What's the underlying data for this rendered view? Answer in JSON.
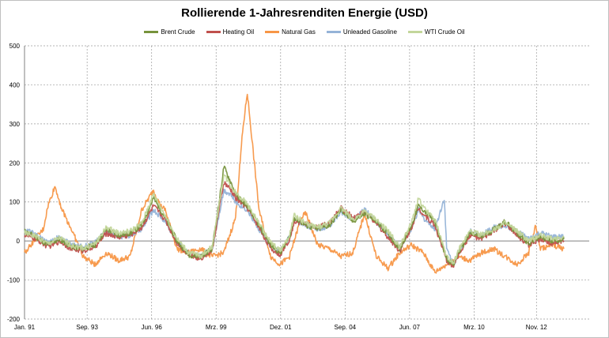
{
  "chart_data": {
    "type": "line",
    "title": "Rollierende 1-Jahresrenditen Energie (USD)",
    "xlabel": "",
    "ylabel": "",
    "ylim": [
      -200,
      500
    ],
    "yticks": [
      -200,
      -100,
      0,
      100,
      200,
      300,
      400,
      500
    ],
    "xlim": [
      1991.0,
      2015.08
    ],
    "xticks": [
      {
        "label": "Jan. 91",
        "x": 1991.0
      },
      {
        "label": "Sep. 93",
        "x": 1993.67
      },
      {
        "label": "Jun. 96",
        "x": 1996.42
      },
      {
        "label": "Mrz. 99",
        "x": 1999.17
      },
      {
        "label": "Dez. 01",
        "x": 2001.92
      },
      {
        "label": "Sep. 04",
        "x": 2004.67
      },
      {
        "label": "Jun. 07",
        "x": 2007.42
      },
      {
        "label": "Mrz. 10",
        "x": 2010.17
      },
      {
        "label": "Nov. 12",
        "x": 2012.83
      }
    ],
    "grid": true,
    "legend_position": "top",
    "series": [
      {
        "name": "Brent Crude",
        "color": "#77933c",
        "x": [
          1991.0,
          1991.5,
          1992.0,
          1992.5,
          1993.0,
          1993.5,
          1994.0,
          1994.5,
          1995.0,
          1995.5,
          1996.0,
          1996.5,
          1997.0,
          1997.5,
          1998.0,
          1998.5,
          1999.0,
          1999.3,
          1999.5,
          1999.8,
          2000.0,
          2000.5,
          2001.0,
          2001.5,
          2001.9,
          2002.3,
          2002.5,
          2003.0,
          2003.5,
          2004.0,
          2004.5,
          2005.0,
          2005.5,
          2006.0,
          2006.5,
          2007.0,
          2007.5,
          2007.8,
          2008.0,
          2008.5,
          2009.0,
          2009.3,
          2009.5,
          2010.0,
          2010.5,
          2011.0,
          2011.5,
          2012.0,
          2012.5,
          2013.0,
          2013.5,
          2014.0
        ],
        "values": [
          25,
          10,
          -10,
          5,
          -15,
          -20,
          -10,
          30,
          15,
          20,
          40,
          110,
          60,
          0,
          -35,
          -40,
          -20,
          100,
          190,
          150,
          120,
          90,
          40,
          -10,
          -30,
          10,
          60,
          40,
          30,
          40,
          80,
          50,
          70,
          50,
          20,
          -20,
          40,
          90,
          80,
          50,
          -45,
          -60,
          -30,
          20,
          10,
          30,
          50,
          20,
          -5,
          10,
          0,
          5
        ]
      },
      {
        "name": "Heating Oil",
        "color": "#c0504d",
        "x": [
          1991.0,
          1991.5,
          1992.0,
          1992.5,
          1993.0,
          1993.5,
          1994.0,
          1994.5,
          1995.0,
          1995.5,
          1996.0,
          1996.5,
          1997.0,
          1997.5,
          1998.0,
          1998.5,
          1999.0,
          1999.3,
          1999.5,
          1999.8,
          2000.0,
          2000.5,
          2001.0,
          2001.5,
          2001.9,
          2002.3,
          2002.5,
          2003.0,
          2003.5,
          2004.0,
          2004.5,
          2005.0,
          2005.5,
          2006.0,
          2006.5,
          2007.0,
          2007.5,
          2007.8,
          2008.0,
          2008.5,
          2009.0,
          2009.3,
          2009.5,
          2010.0,
          2010.5,
          2011.0,
          2011.5,
          2012.0,
          2012.5,
          2013.0,
          2013.5,
          2014.0
        ],
        "values": [
          15,
          5,
          -15,
          0,
          -20,
          -25,
          -15,
          20,
          10,
          15,
          35,
          90,
          55,
          -5,
          -35,
          -45,
          -25,
          80,
          150,
          130,
          110,
          85,
          35,
          -20,
          -35,
          5,
          50,
          45,
          35,
          45,
          85,
          60,
          75,
          45,
          10,
          -25,
          35,
          85,
          70,
          40,
          -50,
          -65,
          -35,
          15,
          5,
          25,
          45,
          15,
          -10,
          5,
          -5,
          0
        ]
      },
      {
        "name": "Natural Gas",
        "color": "#f79646",
        "x": [
          1991.0,
          1991.4,
          1991.8,
          1992.0,
          1992.3,
          1992.6,
          1993.0,
          1993.5,
          1994.0,
          1994.5,
          1995.0,
          1995.5,
          1996.0,
          1996.5,
          1996.8,
          1997.0,
          1997.5,
          1998.0,
          1998.5,
          1999.0,
          1999.5,
          2000.0,
          2000.3,
          2000.5,
          2000.8,
          2001.0,
          2001.5,
          2001.9,
          2002.3,
          2002.8,
          2003.0,
          2003.5,
          2004.0,
          2004.5,
          2005.0,
          2005.5,
          2006.0,
          2006.5,
          2007.0,
          2007.5,
          2008.0,
          2008.5,
          2009.0,
          2009.5,
          2010.0,
          2010.5,
          2011.0,
          2011.5,
          2012.0,
          2012.5,
          2012.8,
          2013.0,
          2013.5,
          2014.0
        ],
        "values": [
          -30,
          0,
          30,
          90,
          140,
          80,
          30,
          -40,
          -60,
          -30,
          -50,
          -40,
          80,
          130,
          90,
          80,
          -20,
          -30,
          -20,
          -40,
          -30,
          60,
          280,
          380,
          200,
          80,
          -40,
          -60,
          -40,
          60,
          70,
          -10,
          -20,
          -40,
          -30,
          70,
          -40,
          -70,
          -30,
          -10,
          -30,
          -80,
          -60,
          -40,
          -50,
          -30,
          -20,
          -40,
          -60,
          -30,
          40,
          -20,
          -10,
          -20
        ]
      },
      {
        "name": "Unleaded Gasoline",
        "color": "#95b3d7",
        "x": [
          1991.0,
          1991.5,
          1992.0,
          1992.5,
          1993.0,
          1993.5,
          1994.0,
          1994.5,
          1995.0,
          1995.5,
          1996.0,
          1996.5,
          1997.0,
          1997.5,
          1998.0,
          1998.5,
          1999.0,
          1999.3,
          1999.5,
          1999.8,
          2000.0,
          2000.5,
          2001.0,
          2001.5,
          2001.9,
          2002.3,
          2002.5,
          2003.0,
          2003.5,
          2004.0,
          2004.5,
          2005.0,
          2005.5,
          2006.0,
          2006.5,
          2007.0,
          2007.5,
          2007.8,
          2008.0,
          2008.5,
          2008.9,
          2009.0,
          2009.3,
          2009.5,
          2010.0,
          2010.5,
          2011.0,
          2011.5,
          2012.0,
          2012.5,
          2013.0,
          2013.5,
          2014.0
        ],
        "values": [
          30,
          15,
          -5,
          10,
          -10,
          -15,
          -5,
          25,
          10,
          15,
          30,
          80,
          50,
          0,
          -30,
          -40,
          -20,
          70,
          130,
          120,
          100,
          80,
          30,
          -15,
          -25,
          10,
          55,
          40,
          30,
          40,
          75,
          55,
          80,
          50,
          15,
          -15,
          30,
          80,
          60,
          30,
          110,
          -20,
          -60,
          -30,
          25,
          15,
          35,
          40,
          25,
          5,
          20,
          10,
          10
        ]
      },
      {
        "name": "WTI Crude Oil",
        "color": "#c3d69b",
        "x": [
          1991.0,
          1991.5,
          1992.0,
          1992.5,
          1993.0,
          1993.5,
          1994.0,
          1994.5,
          1995.0,
          1995.5,
          1996.0,
          1996.5,
          1997.0,
          1997.5,
          1998.0,
          1998.5,
          1999.0,
          1999.3,
          1999.5,
          1999.8,
          2000.0,
          2000.5,
          2001.0,
          2001.5,
          2001.9,
          2002.3,
          2002.5,
          2003.0,
          2003.5,
          2004.0,
          2004.5,
          2005.0,
          2005.5,
          2006.0,
          2006.5,
          2007.0,
          2007.5,
          2007.8,
          2008.0,
          2008.5,
          2009.0,
          2009.3,
          2009.5,
          2010.0,
          2010.5,
          2011.0,
          2011.5,
          2012.0,
          2012.5,
          2013.0,
          2013.5,
          2014.0
        ],
        "values": [
          20,
          12,
          -8,
          8,
          -12,
          -18,
          -8,
          35,
          20,
          25,
          45,
          120,
          65,
          5,
          -30,
          -38,
          -15,
          95,
          170,
          140,
          125,
          95,
          45,
          -5,
          -25,
          15,
          65,
          45,
          35,
          45,
          85,
          55,
          75,
          55,
          25,
          -15,
          45,
          110,
          85,
          55,
          -40,
          -55,
          -25,
          25,
          15,
          30,
          45,
          25,
          0,
          15,
          5,
          10
        ]
      }
    ]
  }
}
